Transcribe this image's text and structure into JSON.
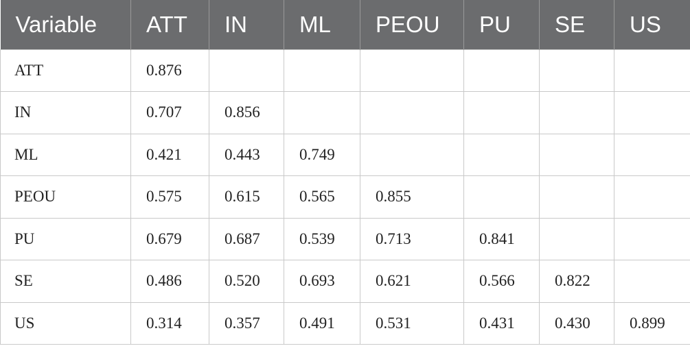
{
  "table": {
    "header": [
      "Variable",
      "ATT",
      "IN",
      "ML",
      "PEOU",
      "PU",
      "SE",
      "US"
    ],
    "rows": [
      [
        "ATT",
        "0.876"
      ],
      [
        "IN",
        "0.707",
        "0.856"
      ],
      [
        "ML",
        "0.421",
        "0.443",
        "0.749"
      ],
      [
        "PEOU",
        "0.575",
        "0.615",
        "0.565",
        "0.855"
      ],
      [
        "PU",
        "0.679",
        "0.687",
        "0.539",
        "0.713",
        "0.841"
      ],
      [
        "SE",
        "0.486",
        "0.520",
        "0.693",
        "0.621",
        "0.566",
        "0.822"
      ],
      [
        "US",
        "0.314",
        "0.357",
        "0.491",
        "0.531",
        "0.431",
        "0.430",
        "0.899"
      ]
    ]
  }
}
